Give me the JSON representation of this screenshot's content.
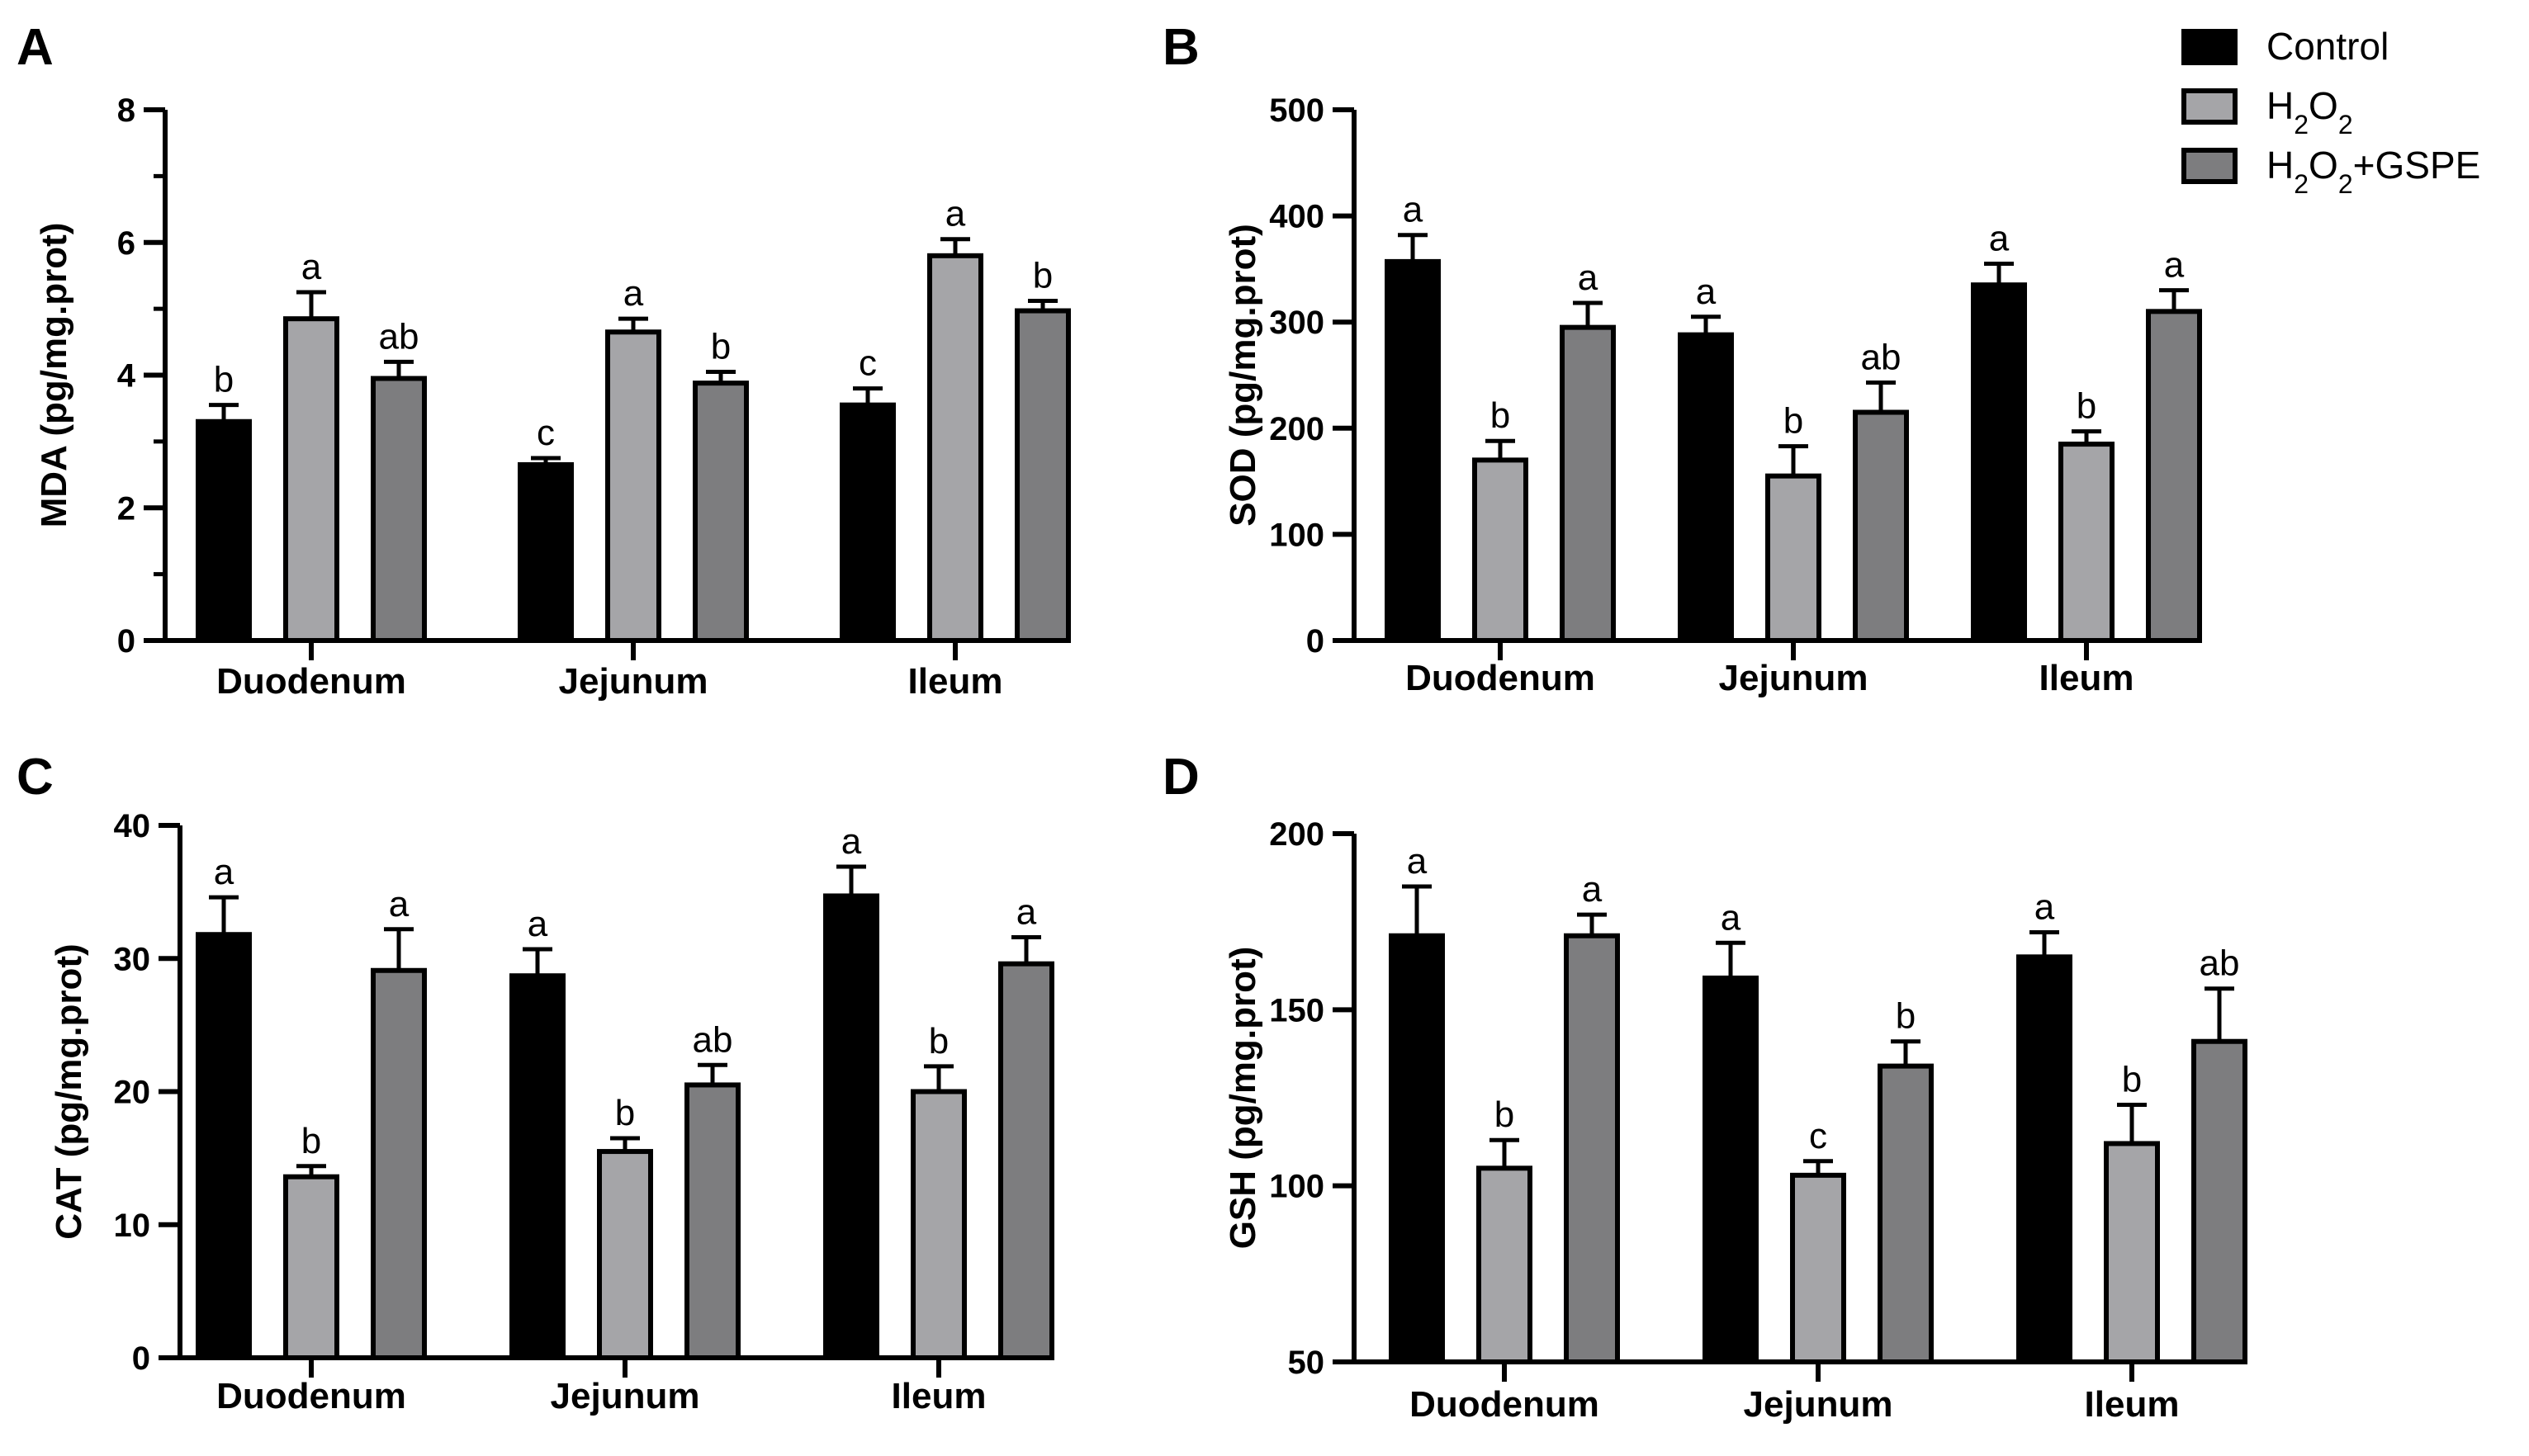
{
  "legend": {
    "position": "top-right",
    "items": [
      {
        "label": "Control",
        "sub": null,
        "color": "#000000"
      },
      {
        "label": "H2O2",
        "sub": "2",
        "color": "#a5a5a8"
      },
      {
        "label": "H2O2+GSPE",
        "sub": "2",
        "color": "#7d7d7f"
      }
    ]
  },
  "series_colors": [
    "#000000",
    "#a5a5a8",
    "#7d7d7f"
  ],
  "chart_data": [
    {
      "type": "bar",
      "panel": "A",
      "categories": [
        "Duodenum",
        "Jejunum",
        "Ileum"
      ],
      "ylabel": "MDA (pg/mg.prot)",
      "ylim": [
        0,
        8
      ],
      "yticks": [
        0,
        2,
        4,
        6,
        8
      ],
      "minor_ticks": true,
      "series": [
        {
          "name": "Control",
          "values": [
            3.3,
            2.65,
            3.55
          ],
          "errors": [
            0.25,
            0.1,
            0.25
          ],
          "letters": [
            "b",
            "c",
            "c"
          ]
        },
        {
          "name": "H2O2",
          "values": [
            4.85,
            4.65,
            5.8
          ],
          "errors": [
            0.4,
            0.2,
            0.25
          ],
          "letters": [
            "a",
            "a",
            "a"
          ]
        },
        {
          "name": "H2O2+GSPE",
          "values": [
            3.95,
            3.88,
            4.97
          ],
          "errors": [
            0.25,
            0.17,
            0.15
          ],
          "letters": [
            "ab",
            "b",
            "b"
          ]
        }
      ]
    },
    {
      "type": "bar",
      "panel": "B",
      "categories": [
        "Duodenum",
        "Jejunum",
        "Ileum"
      ],
      "ylabel": "SOD (pg/mg.prot)",
      "ylim": [
        0,
        500
      ],
      "yticks": [
        0,
        100,
        200,
        300,
        400,
        500
      ],
      "minor_ticks": false,
      "series": [
        {
          "name": "Control",
          "values": [
            357,
            288,
            335
          ],
          "errors": [
            25,
            17,
            20
          ],
          "letters": [
            "a",
            "a",
            "a"
          ]
        },
        {
          "name": "H2O2",
          "values": [
            170,
            155,
            185
          ],
          "errors": [
            18,
            28,
            12
          ],
          "letters": [
            "b",
            "b",
            "b"
          ]
        },
        {
          "name": "H2O2+GSPE",
          "values": [
            295,
            215,
            310
          ],
          "errors": [
            23,
            28,
            20
          ],
          "letters": [
            "a",
            "ab",
            "a"
          ]
        }
      ]
    },
    {
      "type": "bar",
      "panel": "C",
      "categories": [
        "Duodenum",
        "Jejunum",
        "Ileum"
      ],
      "ylabel": "CAT (pg/mg.prot)",
      "ylim": [
        0,
        40
      ],
      "yticks": [
        0,
        10,
        20,
        30,
        40
      ],
      "minor_ticks": false,
      "series": [
        {
          "name": "Control",
          "values": [
            31.8,
            28.7,
            34.7
          ],
          "errors": [
            2.8,
            2.0,
            2.2
          ],
          "letters": [
            "a",
            "a",
            "a"
          ]
        },
        {
          "name": "H2O2",
          "values": [
            13.6,
            15.5,
            20.0
          ],
          "errors": [
            0.8,
            1.0,
            1.9
          ],
          "letters": [
            "b",
            "b",
            "b"
          ]
        },
        {
          "name": "H2O2+GSPE",
          "values": [
            29.1,
            20.5,
            29.6
          ],
          "errors": [
            3.1,
            1.5,
            2.0
          ],
          "letters": [
            "a",
            "ab",
            "a"
          ]
        }
      ]
    },
    {
      "type": "bar",
      "panel": "D",
      "categories": [
        "Duodenum",
        "Jejunum",
        "Ileum"
      ],
      "ylabel": "GSH (pg/mg.prot)",
      "ylim": [
        50,
        200
      ],
      "yticks": [
        50,
        100,
        150,
        200
      ],
      "minor_ticks": false,
      "series": [
        {
          "name": "Control",
          "values": [
            171,
            159,
            165
          ],
          "errors": [
            14,
            10,
            7
          ],
          "letters": [
            "a",
            "a",
            "a"
          ]
        },
        {
          "name": "H2O2",
          "values": [
            105,
            103,
            112
          ],
          "errors": [
            8,
            4,
            11
          ],
          "letters": [
            "b",
            "c",
            "b"
          ]
        },
        {
          "name": "H2O2+GSPE",
          "values": [
            171,
            134,
            141
          ],
          "errors": [
            6,
            7,
            15
          ],
          "letters": [
            "a",
            "b",
            "ab"
          ]
        }
      ]
    }
  ]
}
